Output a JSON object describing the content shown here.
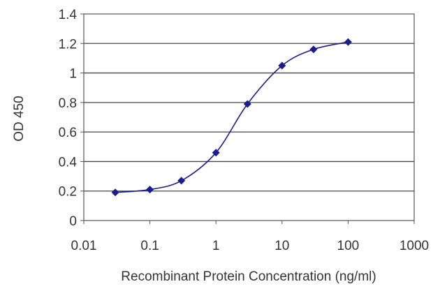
{
  "chart_data": {
    "type": "scatter",
    "title": "",
    "xlabel": "Recombinant Protein Concentration (ng/ml)",
    "ylabel": "OD 450",
    "x_scale": "log",
    "xlim": [
      0.01,
      1000
    ],
    "ylim": [
      0,
      1.4
    ],
    "x_ticks": [
      0.01,
      0.1,
      1,
      10,
      100,
      1000
    ],
    "x_tick_labels": [
      "0.01",
      "0.1",
      "1",
      "10",
      "100",
      "1000"
    ],
    "y_ticks": [
      0,
      0.2,
      0.4,
      0.6,
      0.8,
      1,
      1.2,
      1.4
    ],
    "y_tick_labels": [
      "0",
      "0.2",
      "0.4",
      "0.6",
      "0.8",
      "1",
      "1.2",
      "1.4"
    ],
    "grid": "horizontal",
    "legend": "none",
    "colors": {
      "series": "#1c1c8c",
      "grid": "#444444",
      "frame": "#555555"
    },
    "series": [
      {
        "x": [
          0.03,
          0.1,
          0.3,
          1,
          3,
          10,
          30,
          100
        ],
        "y": [
          0.19,
          0.21,
          0.27,
          0.46,
          0.79,
          1.05,
          1.16,
          1.21
        ]
      }
    ]
  }
}
